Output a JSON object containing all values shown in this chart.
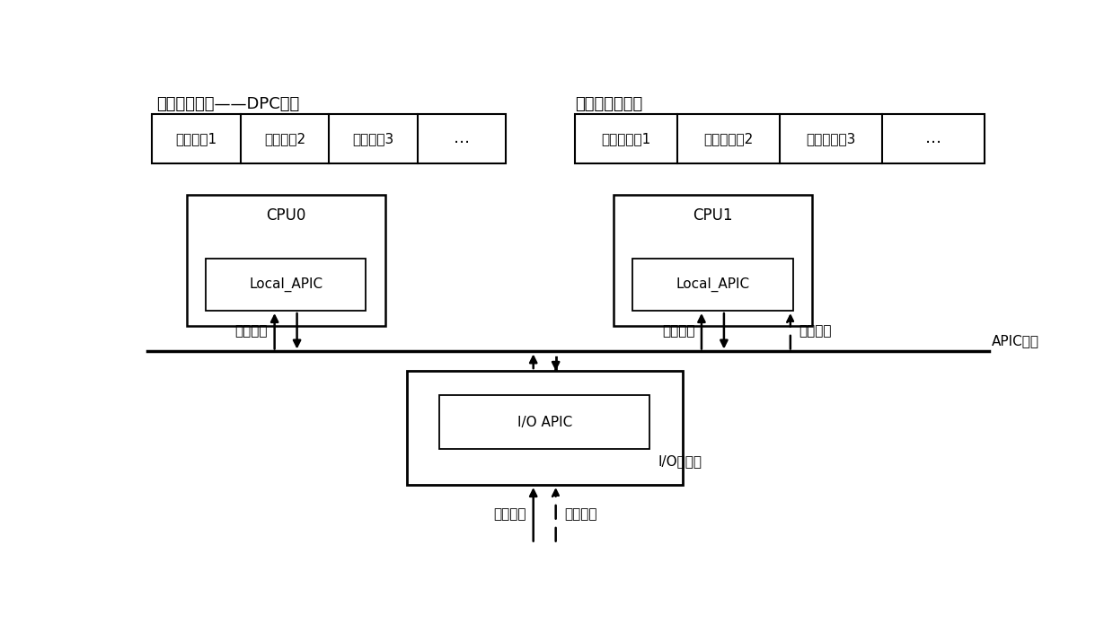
{
  "bg_color": "#ffffff",
  "fig_width": 12.39,
  "fig_height": 7.15,
  "dpi": 100,
  "labels": {
    "rt_queue_label": "实时任务队列——DPC队列",
    "nrt_queue_label": "非实时任务队列",
    "rt_task1": "实时任务1",
    "rt_task2": "实时任务2",
    "rt_task3": "实时任务3",
    "rt_dots": "…",
    "nrt_task1": "非实时任务1",
    "nrt_task2": "非实时任务2",
    "nrt_task3": "非实时任务3",
    "nrt_dots": "…",
    "cpu0": "CPU0",
    "cpu1": "CPU1",
    "local_apic": "Local_APIC",
    "io_apic": "I/O APIC",
    "io_chipset": "I/O芯片组",
    "apic_bus": "APIC总线",
    "local_int1": "本地中断",
    "local_int2": "本地中断",
    "ext_int_cpu1": "外部中断",
    "ext_int_io1": "外部中断",
    "ext_int_io2": "外部中断"
  }
}
